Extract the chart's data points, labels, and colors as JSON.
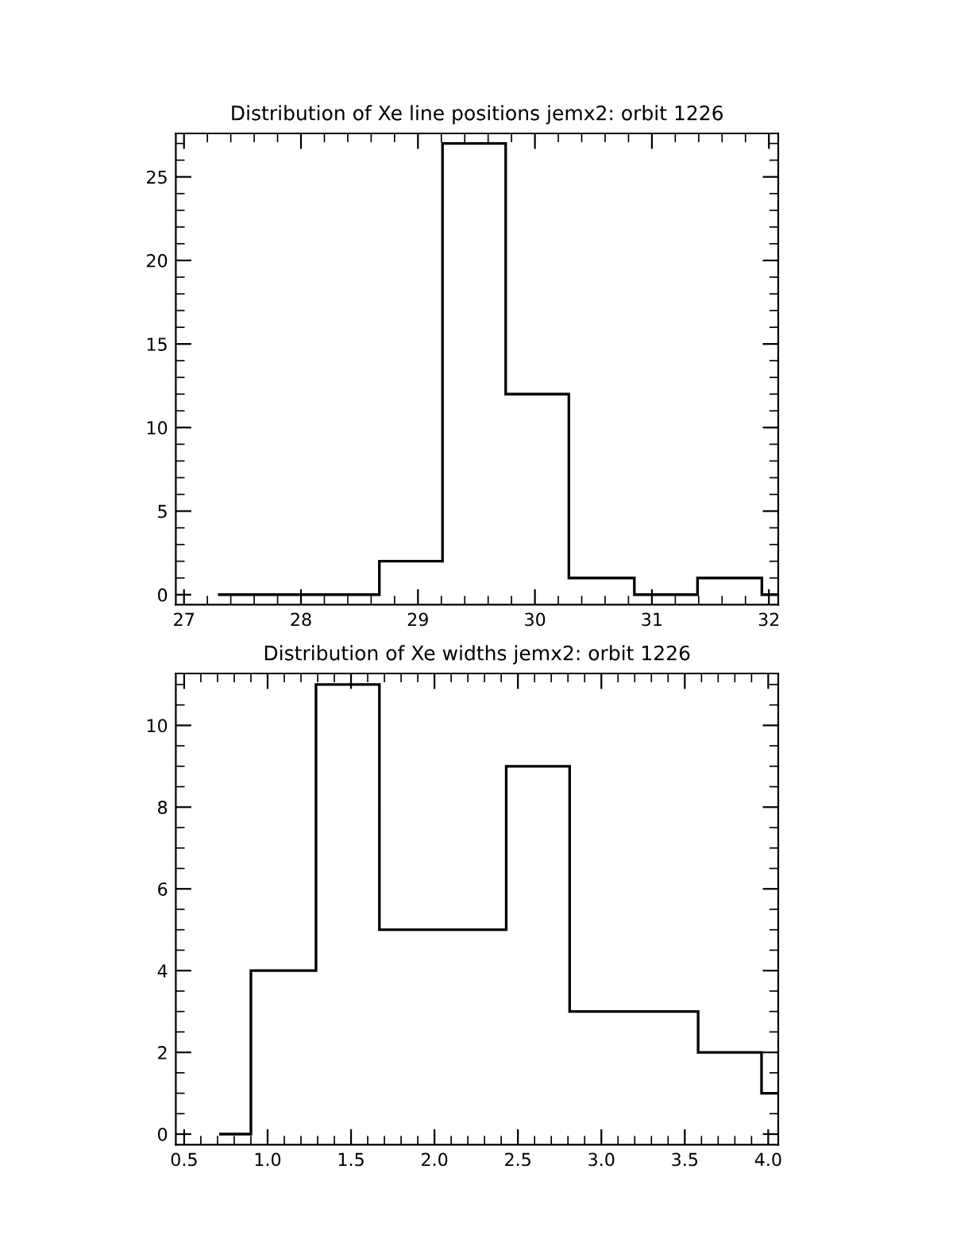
{
  "chart_data": [
    {
      "type": "histogram",
      "title": "Distribution of Xe line positions jemx2: orbit 1226",
      "bins": [
        27.29,
        28.67,
        29.21,
        29.75,
        30.29,
        30.85,
        31.39,
        31.94,
        32.08
      ],
      "values": [
        0,
        2,
        27,
        12,
        1,
        0,
        1,
        0
      ],
      "color": "#000000",
      "xlim": [
        26.93,
        32.08
      ],
      "ylim": [
        -0.6,
        27.6
      ],
      "xticks": [
        27,
        28,
        29,
        30,
        31,
        32
      ],
      "yticks": [
        0,
        5,
        10,
        15,
        20,
        25
      ],
      "grid": false
    },
    {
      "type": "histogram",
      "title": "Distribution of Xe widths jemx2: orbit 1226",
      "bins": [
        0.71,
        0.9,
        1.29,
        1.67,
        2.05,
        2.43,
        2.81,
        3.19,
        3.58,
        3.96,
        4.06
      ],
      "values": [
        0,
        4,
        11,
        5,
        5,
        9,
        3,
        3,
        2,
        1
      ],
      "color": "#000000",
      "xlim": [
        0.45,
        4.06
      ],
      "ylim": [
        -0.26,
        11.27
      ],
      "xticks": [
        0.5,
        {
          "value": 1,
          "label": "1.0"
        },
        1.5,
        {
          "value": 2,
          "label": "2.0"
        },
        2.5,
        {
          "value": 3,
          "label": "3.0"
        },
        3.5,
        {
          "value": 4,
          "label": "4.0"
        }
      ],
      "yticks": [
        0,
        2,
        4,
        6,
        8,
        10
      ],
      "grid": false
    }
  ]
}
